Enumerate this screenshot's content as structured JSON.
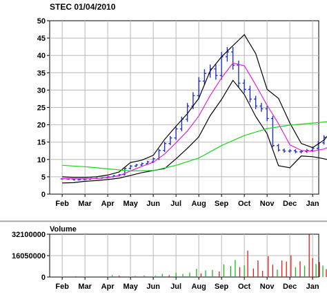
{
  "chart_data": [
    {
      "type": "line",
      "title": "STEC 01/04/2010",
      "ylim": [
        0,
        50
      ],
      "yticks": [
        0,
        5,
        10,
        15,
        20,
        25,
        30,
        35,
        40,
        45,
        50
      ],
      "x_tick_labels": [
        "Feb",
        "Mar",
        "Apr",
        "May",
        "Jun",
        "Jul",
        "Aug",
        "Sep",
        "Oct",
        "Nov",
        "Dec",
        "Jan"
      ],
      "grid": true,
      "series": [
        {
          "style": "ohlc-bars",
          "color": "#1f2fd6",
          "x": [
            0,
            0.25,
            0.5,
            0.75,
            1,
            1.25,
            1.5,
            1.75,
            2,
            2.25,
            2.5,
            2.75,
            3,
            3.25,
            3.5,
            3.75,
            4,
            4.25,
            4.5,
            4.75,
            5,
            5.25,
            5.5,
            5.75,
            6,
            6.25,
            6.5,
            6.75,
            7,
            7.25,
            7.5,
            7.75,
            8,
            8.25,
            8.5,
            8.75,
            9,
            9.25,
            9.5,
            9.75,
            10,
            10.25,
            10.5,
            10.75,
            11,
            11.25,
            11.5,
            11.75
          ],
          "values": [
            4.4,
            4.3,
            4.1,
            4.2,
            4.3,
            4.5,
            4.6,
            4.7,
            5.0,
            5.3,
            5.6,
            7.4,
            8.1,
            8.4,
            8.8,
            9.3,
            10.2,
            12.6,
            14.6,
            16.2,
            18.8,
            21.6,
            25.4,
            28.4,
            32.6,
            34.8,
            36.1,
            34.2,
            39.6,
            41.0,
            37.2,
            32.0,
            30.2,
            27.4,
            25.4,
            24.6,
            21.8,
            14.0,
            12.7,
            12.4,
            12.5,
            12.2,
            12.3,
            12.6,
            13.2,
            14.8,
            16.4,
            17.6
          ]
        },
        {
          "style": "line",
          "color": "#e020e0",
          "x": [
            0,
            0.5,
            1,
            1.5,
            2,
            2.5,
            3,
            3.5,
            4,
            4.5,
            5,
            5.5,
            6,
            6.5,
            7,
            7.5,
            8,
            8.5,
            9,
            9.5,
            10,
            10.5,
            11,
            11.5,
            11.85
          ],
          "values": [
            4.5,
            4.4,
            4.4,
            4.5,
            4.8,
            5.3,
            6.7,
            8.0,
            9.2,
            11.6,
            14.8,
            18.2,
            22.5,
            28.4,
            33.5,
            37.8,
            37.0,
            31.5,
            25.6,
            20.3,
            14.2,
            12.6,
            12.4,
            13.0,
            14.0
          ]
        },
        {
          "style": "line",
          "color": "#000000",
          "x": [
            0,
            0.5,
            1,
            1.5,
            2,
            2.5,
            3,
            3.5,
            4,
            4.5,
            5,
            5.5,
            6,
            6.5,
            7,
            7.5,
            8,
            8.5,
            9,
            9.5,
            10,
            10.5,
            11,
            11.5,
            11.85
          ],
          "values": [
            5.0,
            4.8,
            4.8,
            5.0,
            5.5,
            6.4,
            9.1,
            9.8,
            11.2,
            15.8,
            19.6,
            23.2,
            27.6,
            35.5,
            39.6,
            42.8,
            46.0,
            40.5,
            30.2,
            27.6,
            20.5,
            14.6,
            13.4,
            15.6,
            18.3
          ]
        },
        {
          "style": "line",
          "color": "#000000",
          "x": [
            0,
            0.5,
            1,
            1.5,
            2,
            2.5,
            3,
            3.5,
            4,
            4.5,
            5,
            5.5,
            6,
            6.5,
            7,
            7.5,
            8,
            8.5,
            9,
            9.5,
            10,
            10.5,
            11,
            11.5,
            11.85
          ],
          "values": [
            3.2,
            3.3,
            3.7,
            3.9,
            4.2,
            4.6,
            5.4,
            6.2,
            6.8,
            7.4,
            10.2,
            13.2,
            16.5,
            22.6,
            27.3,
            32.8,
            28.7,
            22.4,
            17.4,
            8.2,
            7.6,
            11.0,
            10.8,
            10.2,
            9.6
          ]
        },
        {
          "style": "line",
          "color": "#18d818",
          "x": [
            0,
            1,
            2,
            3,
            4,
            5,
            6,
            7,
            8,
            9,
            10,
            11,
            11.85
          ],
          "values": [
            8.3,
            7.9,
            7.3,
            6.7,
            6.8,
            8.3,
            10.4,
            14.0,
            16.9,
            18.9,
            19.9,
            20.5,
            21.0
          ]
        }
      ]
    },
    {
      "type": "bar",
      "title": "Volume",
      "ylim": [
        0,
        32100000
      ],
      "yticks": [
        "0",
        "16050000",
        "32100000"
      ],
      "x_tick_labels": [
        "Feb",
        "Mar",
        "Apr",
        "May",
        "Jun",
        "Jul",
        "Aug",
        "Sep",
        "Oct",
        "Nov",
        "Dec",
        "Jan"
      ],
      "grid": true,
      "colors": {
        "up": "#18b818",
        "down": "#e01818"
      },
      "bars": [
        {
          "x": 0.6,
          "value": 600000,
          "dir": "down"
        },
        {
          "x": 1.4,
          "value": 500000,
          "dir": "up"
        },
        {
          "x": 2.2,
          "value": 1500000,
          "dir": "up"
        },
        {
          "x": 2.5,
          "value": 1000000,
          "dir": "down"
        },
        {
          "x": 3.2,
          "value": 900000,
          "dir": "up"
        },
        {
          "x": 3.6,
          "value": 1200000,
          "dir": "up"
        },
        {
          "x": 4.1,
          "value": 900000,
          "dir": "up"
        },
        {
          "x": 4.4,
          "value": 2400000,
          "dir": "up"
        },
        {
          "x": 4.7,
          "value": 1400000,
          "dir": "down"
        },
        {
          "x": 5.0,
          "value": 3200000,
          "dir": "up"
        },
        {
          "x": 5.3,
          "value": 2300000,
          "dir": "up"
        },
        {
          "x": 5.6,
          "value": 3400000,
          "dir": "up"
        },
        {
          "x": 5.9,
          "value": 6100000,
          "dir": "up"
        },
        {
          "x": 6.1,
          "value": 2800000,
          "dir": "down"
        },
        {
          "x": 6.3,
          "value": 5000000,
          "dir": "up"
        },
        {
          "x": 6.6,
          "value": 5300000,
          "dir": "up"
        },
        {
          "x": 6.9,
          "value": 4200000,
          "dir": "down"
        },
        {
          "x": 7.1,
          "value": 9600000,
          "dir": "up"
        },
        {
          "x": 7.4,
          "value": 8300000,
          "dir": "up"
        },
        {
          "x": 7.6,
          "value": 12800000,
          "dir": "up"
        },
        {
          "x": 7.8,
          "value": 7400000,
          "dir": "down"
        },
        {
          "x": 8.0,
          "value": 8700000,
          "dir": "up"
        },
        {
          "x": 8.15,
          "value": 19800000,
          "dir": "down"
        },
        {
          "x": 8.4,
          "value": 6400000,
          "dir": "down"
        },
        {
          "x": 8.6,
          "value": 12500000,
          "dir": "down"
        },
        {
          "x": 8.8,
          "value": 4700000,
          "dir": "down"
        },
        {
          "x": 9.05,
          "value": 15600000,
          "dir": "down"
        },
        {
          "x": 9.25,
          "value": 9200000,
          "dir": "down"
        },
        {
          "x": 9.45,
          "value": 5600000,
          "dir": "up"
        },
        {
          "x": 9.65,
          "value": 12400000,
          "dir": "down"
        },
        {
          "x": 9.85,
          "value": 11600000,
          "dir": "down"
        },
        {
          "x": 10.05,
          "value": 16200000,
          "dir": "down"
        },
        {
          "x": 10.25,
          "value": 7400000,
          "dir": "up"
        },
        {
          "x": 10.45,
          "value": 11800000,
          "dir": "down"
        },
        {
          "x": 10.65,
          "value": 8500000,
          "dir": "up"
        },
        {
          "x": 10.85,
          "value": 31800000,
          "dir": "down"
        },
        {
          "x": 11.0,
          "value": 14200000,
          "dir": "down"
        },
        {
          "x": 11.15,
          "value": 9800000,
          "dir": "up"
        },
        {
          "x": 11.3,
          "value": 11200000,
          "dir": "down"
        },
        {
          "x": 11.45,
          "value": 8600000,
          "dir": "up"
        },
        {
          "x": 11.6,
          "value": 5900000,
          "dir": "down"
        },
        {
          "x": 11.75,
          "value": 12800000,
          "dir": "up"
        },
        {
          "x": 11.85,
          "value": 18200000,
          "dir": "up"
        }
      ]
    }
  ]
}
